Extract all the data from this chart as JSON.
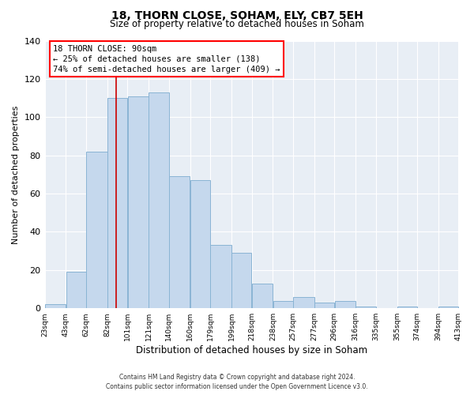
{
  "title1": "18, THORN CLOSE, SOHAM, ELY, CB7 5EH",
  "title2": "Size of property relative to detached houses in Soham",
  "xlabel": "Distribution of detached houses by size in Soham",
  "ylabel": "Number of detached properties",
  "bar_left_edges": [
    23,
    43,
    62,
    82,
    101,
    121,
    140,
    160,
    179,
    199,
    218,
    238,
    257,
    277,
    296,
    316,
    335,
    355,
    374,
    394
  ],
  "bar_widths": [
    20,
    19,
    20,
    19,
    20,
    19,
    20,
    19,
    20,
    19,
    20,
    19,
    20,
    19,
    20,
    19,
    20,
    19,
    20,
    19
  ],
  "bar_heights": [
    2,
    19,
    82,
    110,
    111,
    113,
    69,
    67,
    33,
    29,
    13,
    4,
    6,
    3,
    4,
    1,
    0,
    1,
    0,
    1
  ],
  "bar_color": "#c5d8ed",
  "bar_edgecolor": "#8ab4d4",
  "tick_labels": [
    "23sqm",
    "43sqm",
    "62sqm",
    "82sqm",
    "101sqm",
    "121sqm",
    "140sqm",
    "160sqm",
    "179sqm",
    "199sqm",
    "218sqm",
    "238sqm",
    "257sqm",
    "277sqm",
    "296sqm",
    "316sqm",
    "335sqm",
    "355sqm",
    "374sqm",
    "394sqm",
    "413sqm"
  ],
  "tick_positions": [
    23,
    43,
    62,
    82,
    101,
    121,
    140,
    160,
    179,
    199,
    218,
    238,
    257,
    277,
    296,
    316,
    335,
    355,
    374,
    394,
    413
  ],
  "ylim": [
    0,
    140
  ],
  "yticks": [
    0,
    20,
    40,
    60,
    80,
    100,
    120,
    140
  ],
  "red_line_x": 90,
  "annotation_title": "18 THORN CLOSE: 90sqm",
  "annotation_line1": "← 25% of detached houses are smaller (138)",
  "annotation_line2": "74% of semi-detached houses are larger (409) →",
  "footer1": "Contains HM Land Registry data © Crown copyright and database right 2024.",
  "footer2": "Contains public sector information licensed under the Open Government Licence v3.0.",
  "grid_color": "#d8e4f0",
  "background_color": "#e8eef5",
  "plot_background": "#ffffff"
}
